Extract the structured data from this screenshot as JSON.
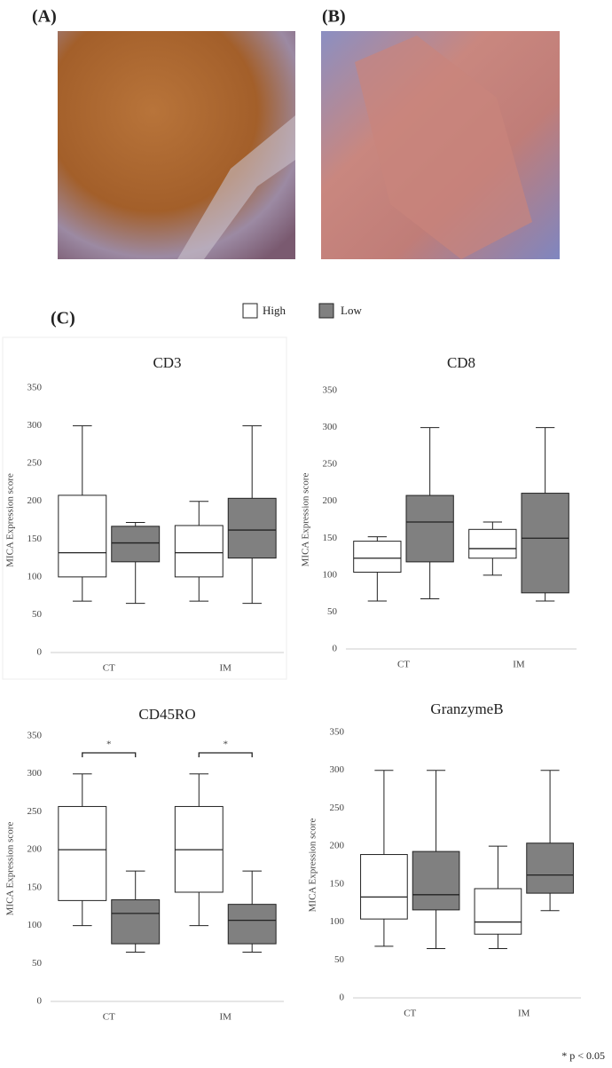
{
  "panel_labels": [
    "(A)",
    "(B)",
    "(C)"
  ],
  "footnote": "* p < 0.05",
  "chart_data": [
    {
      "type": "box",
      "title": "CD3",
      "ylabel": "MICA Expression score",
      "categories": [
        "CT",
        "IM"
      ],
      "ylim": [
        0,
        350
      ],
      "yticks": [
        0,
        50,
        100,
        150,
        200,
        250,
        300,
        350
      ],
      "series": [
        {
          "name": "High",
          "color": "#ffffff",
          "boxes": [
            {
              "min": 68,
              "q1": 100,
              "median": 132,
              "q3": 208,
              "max": 300
            },
            {
              "min": 68,
              "q1": 100,
              "median": 132,
              "q3": 168,
              "max": 200
            }
          ]
        },
        {
          "name": "Low",
          "color": "#808080",
          "boxes": [
            {
              "min": 65,
              "q1": 120,
              "median": 145,
              "q3": 167,
              "max": 172
            },
            {
              "min": 65,
              "q1": 125,
              "median": 162,
              "q3": 204,
              "max": 300
            }
          ]
        }
      ]
    },
    {
      "type": "box",
      "title": "CD8",
      "ylabel": "MICA Expression score",
      "categories": [
        "CT",
        "IM"
      ],
      "ylim": [
        0,
        350
      ],
      "yticks": [
        0,
        50,
        100,
        150,
        200,
        250,
        300,
        350
      ],
      "series": [
        {
          "name": "High",
          "color": "#ffffff",
          "boxes": [
            {
              "min": 65,
              "q1": 104,
              "median": 123,
              "q3": 146,
              "max": 152
            },
            {
              "min": 100,
              "q1": 123,
              "median": 136,
              "q3": 162,
              "max": 172
            }
          ]
        },
        {
          "name": "Low",
          "color": "#808080",
          "boxes": [
            {
              "min": 68,
              "q1": 118,
              "median": 172,
              "q3": 208,
              "max": 300
            },
            {
              "min": 65,
              "q1": 76,
              "median": 150,
              "q3": 211,
              "max": 300
            }
          ]
        }
      ]
    },
    {
      "type": "box",
      "title": "CD45RO",
      "ylabel": "MICA Expression score",
      "categories": [
        "CT",
        "IM"
      ],
      "ylim": [
        0,
        350
      ],
      "yticks": [
        0,
        50,
        100,
        150,
        200,
        250,
        300,
        350
      ],
      "annotations": [
        "*",
        "*"
      ],
      "series": [
        {
          "name": "High",
          "color": "#ffffff",
          "boxes": [
            {
              "min": 100,
              "q1": 133,
              "median": 200,
              "q3": 257,
              "max": 300
            },
            {
              "min": 100,
              "q1": 144,
              "median": 200,
              "q3": 257,
              "max": 300
            }
          ]
        },
        {
          "name": "Low",
          "color": "#808080",
          "boxes": [
            {
              "min": 65,
              "q1": 76,
              "median": 116,
              "q3": 134,
              "max": 172
            },
            {
              "min": 65,
              "q1": 76,
              "median": 107,
              "q3": 128,
              "max": 172
            }
          ]
        }
      ]
    },
    {
      "type": "box",
      "title": "GranzymeB",
      "ylabel": "MICA Expression score",
      "categories": [
        "CT",
        "IM"
      ],
      "ylim": [
        0,
        350
      ],
      "yticks": [
        0,
        50,
        100,
        150,
        200,
        250,
        300,
        350
      ],
      "series": [
        {
          "name": "High",
          "color": "#ffffff",
          "boxes": [
            {
              "min": 68,
              "q1": 104,
              "median": 133,
              "q3": 189,
              "max": 300
            },
            {
              "min": 65,
              "q1": 84,
              "median": 100,
              "q3": 144,
              "max": 200
            }
          ]
        },
        {
          "name": "Low",
          "color": "#808080",
          "boxes": [
            {
              "min": 65,
              "q1": 116,
              "median": 136,
              "q3": 193,
              "max": 300
            },
            {
              "min": 115,
              "q1": 138,
              "median": 162,
              "q3": 204,
              "max": 300
            }
          ]
        }
      ]
    }
  ]
}
